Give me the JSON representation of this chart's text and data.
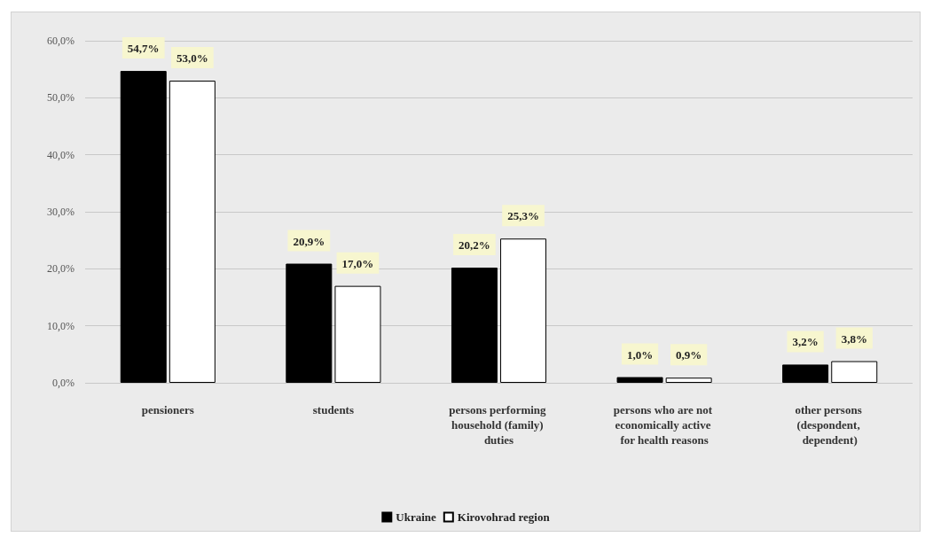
{
  "chart_data": {
    "type": "bar",
    "categories": [
      "pensioners",
      "students",
      "persons performing household (family) duties",
      "persons who are not economically active for health reasons",
      "other persons (despondent, dependent)"
    ],
    "series": [
      {
        "name": "Ukraine",
        "color": "#000000",
        "values": [
          54.7,
          20.9,
          20.2,
          1.0,
          3.2
        ],
        "value_labels": [
          "54,7%",
          "20,9%",
          "20,2%",
          "1,0%",
          "3,2%"
        ]
      },
      {
        "name": "Kirovohrad region",
        "color": "#ffffff",
        "values": [
          53.0,
          17.0,
          25.3,
          0.9,
          3.8
        ],
        "value_labels": [
          "53,0%",
          "17,0%",
          "25,3%",
          "0,9%",
          "3,8%"
        ]
      }
    ],
    "ylim": [
      0,
      60
    ],
    "yticks": [
      {
        "value": 0,
        "label": "0,0%"
      },
      {
        "value": 10,
        "label": "10,0%"
      },
      {
        "value": 20,
        "label": "20,0%"
      },
      {
        "value": 30,
        "label": "30,0%"
      },
      {
        "value": 40,
        "label": "40,0%"
      },
      {
        "value": 50,
        "label": "50,0%"
      },
      {
        "value": 60,
        "label": "60,0%"
      }
    ],
    "grid": "y",
    "legend": "bottom"
  }
}
